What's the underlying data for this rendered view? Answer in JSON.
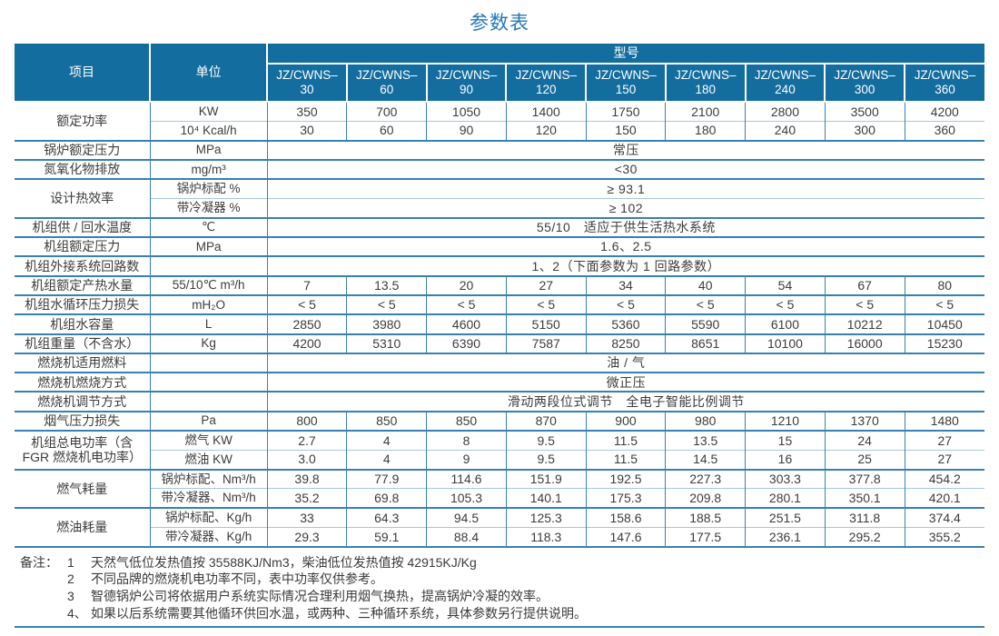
{
  "title": "参数表",
  "header": {
    "item": "项目",
    "unit": "单位",
    "model_group": "型号",
    "models": [
      "JZ/CWNS–\n30",
      "JZ/CWNS–\n60",
      "JZ/CWNS–\n90",
      "JZ/CWNS–\n120",
      "JZ/CWNS–\n150",
      "JZ/CWNS–\n180",
      "JZ/CWNS–\n240",
      "JZ/CWNS–\n300",
      "JZ/CWNS–\n360"
    ]
  },
  "rows": [
    {
      "label": "额定功率",
      "sub": [
        {
          "unit": "KW",
          "values": [
            "350",
            "700",
            "1050",
            "1400",
            "1750",
            "2100",
            "2800",
            "3500",
            "4200"
          ]
        },
        {
          "unit": "10⁴ Kcal/h",
          "values": [
            "30",
            "60",
            "90",
            "120",
            "150",
            "180",
            "240",
            "300",
            "360"
          ]
        }
      ]
    },
    {
      "label": "锅炉额定压力",
      "sub": [
        {
          "unit": "MPa",
          "span": "常压"
        }
      ]
    },
    {
      "label": "氮氧化物排放",
      "sub": [
        {
          "unit": "mg/m³",
          "span": "<30"
        }
      ]
    },
    {
      "label": "设计热效率",
      "sub": [
        {
          "unit": "锅炉标配 %",
          "span": "≥ 93.1"
        },
        {
          "unit": "带冷凝器 %",
          "span": "≥ 102"
        }
      ]
    },
    {
      "label": "机组供 / 回水温度",
      "sub": [
        {
          "unit": "℃",
          "span": "55/10　适应于供生活热水系统"
        }
      ]
    },
    {
      "label": "机组额定压力",
      "sub": [
        {
          "unit": "MPa",
          "span": "1.6、2.5"
        }
      ]
    },
    {
      "label": "机组外接系统回路数",
      "sub": [
        {
          "unit": "",
          "span": "1、2（下面参数为 1 回路参数）"
        }
      ]
    },
    {
      "label": "机组额定产热水量",
      "sub": [
        {
          "unit": "55/10℃ m³/h",
          "values": [
            "7",
            "13.5",
            "20",
            "27",
            "34",
            "40",
            "54",
            "67",
            "80"
          ]
        }
      ]
    },
    {
      "label": "机组水循环压力损失",
      "sub": [
        {
          "unit": "mH₂O",
          "values": [
            "< 5",
            "< 5",
            "< 5",
            "< 5",
            "< 5",
            "< 5",
            "< 5",
            "< 5",
            "< 5"
          ]
        }
      ]
    },
    {
      "label": "机组水容量",
      "sub": [
        {
          "unit": "L",
          "values": [
            "2850",
            "3980",
            "4600",
            "5150",
            "5360",
            "5590",
            "6100",
            "10212",
            "10450"
          ]
        }
      ]
    },
    {
      "label": "机组重量（不含水）",
      "sub": [
        {
          "unit": "Kg",
          "values": [
            "4200",
            "5310",
            "6390",
            "7587",
            "8250",
            "8651",
            "10100",
            "16000",
            "15230"
          ]
        }
      ]
    },
    {
      "label": "燃烧机适用燃料",
      "sub": [
        {
          "unit": "",
          "span": "油 / 气"
        }
      ]
    },
    {
      "label": "燃烧机燃烧方式",
      "sub": [
        {
          "unit": "",
          "span": "微正压"
        }
      ]
    },
    {
      "label": "燃烧机调节方式",
      "sub": [
        {
          "unit": "",
          "span": "滑动两段位式调节　全电子智能比例调节"
        }
      ]
    },
    {
      "label": "烟气压力损失",
      "sub": [
        {
          "unit": "Pa",
          "values": [
            "800",
            "850",
            "850",
            "870",
            "900",
            "980",
            "1210",
            "1370",
            "1480"
          ]
        }
      ]
    },
    {
      "label": "机组总电功率（含 FGR 燃烧机电功率）",
      "sub": [
        {
          "unit": "燃气 KW",
          "values": [
            "2.7",
            "4",
            "8",
            "9.5",
            "11.5",
            "13.5",
            "15",
            "24",
            "27"
          ]
        },
        {
          "unit": "燃油 KW",
          "values": [
            "3.0",
            "4",
            "9",
            "9.5",
            "11.5",
            "14.5",
            "16",
            "25",
            "27"
          ]
        }
      ]
    },
    {
      "label": "燃气耗量",
      "sub": [
        {
          "unit": "锅炉标配、Nm³/h",
          "values": [
            "39.8",
            "77.9",
            "114.6",
            "151.9",
            "192.5",
            "227.3",
            "303.3",
            "377.8",
            "454.2"
          ]
        },
        {
          "unit": "带冷凝器、Nm³/h",
          "values": [
            "35.2",
            "69.8",
            "105.3",
            "140.1",
            "175.3",
            "209.8",
            "280.1",
            "350.1",
            "420.1"
          ]
        }
      ]
    },
    {
      "label": "燃油耗量",
      "sub": [
        {
          "unit": "锅炉标配、Kg/h",
          "values": [
            "33",
            "64.3",
            "94.5",
            "125.3",
            "158.6",
            "188.5",
            "251.5",
            "311.8",
            "374.4"
          ]
        },
        {
          "unit": "带冷凝器、Kg/h",
          "values": [
            "29.3",
            "59.1",
            "88.4",
            "118.3",
            "147.6",
            "177.5",
            "236.1",
            "295.2",
            "355.2"
          ]
        }
      ]
    }
  ],
  "notes": {
    "label": "备注：",
    "lines": [
      {
        "num": "1",
        "text": "天然气低位发热值按 35588KJ/Nm3，柴油低位发热值按 42915KJ/Kg"
      },
      {
        "num": "2",
        "text": "不同品牌的燃烧机电功率不同，表中功率仅供参考。"
      },
      {
        "num": "3",
        "text": "智德锅炉公司将依据用户系统实际情况合理利用烟气换热，提高锅炉冷凝的效率。"
      },
      {
        "num": "4、",
        "text": "如果以后系统需要其他循环供回水温，或两种、三种循环系统，具体参数另行提供说明。"
      }
    ]
  },
  "colors": {
    "header_bg": "#136d9e",
    "title_text": "#2478b6",
    "grid_strong": "#3880b4",
    "grid_light": "#a3c8e2",
    "body_text": "#3c3c3c"
  }
}
